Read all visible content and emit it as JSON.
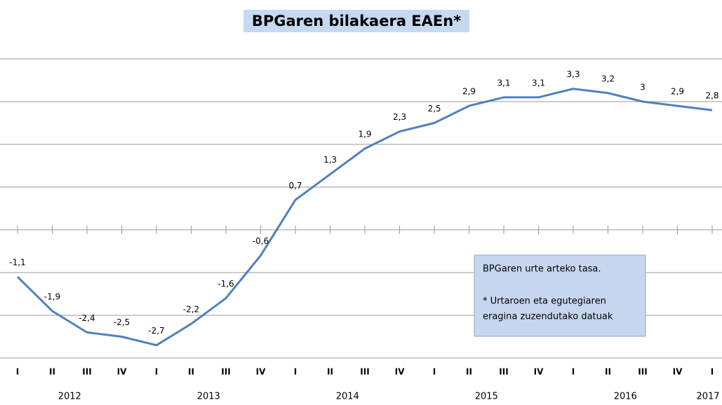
{
  "chart_data": {
    "type": "line",
    "title": "BPGaren bilakaera EAEn*",
    "categories": [
      "I",
      "II",
      "III",
      "IV",
      "I",
      "II",
      "III",
      "IV",
      "I",
      "II",
      "III",
      "IV",
      "I",
      "II",
      "III",
      "IV",
      "I",
      "II",
      "III",
      "IV",
      "I"
    ],
    "years": [
      "2012",
      "2013",
      "2014",
      "2015",
      "2016",
      "2017"
    ],
    "series": [
      {
        "name": "BPGaren urte arteko tasa",
        "color": "#4f81bd",
        "values": [
          -1.1,
          -1.9,
          -2.4,
          -2.5,
          -2.7,
          -2.2,
          -1.6,
          -0.6,
          0.7,
          1.3,
          1.9,
          2.3,
          2.5,
          2.9,
          3.1,
          3.1,
          3.3,
          3.2,
          3,
          2.9,
          2.8
        ],
        "value_labels": [
          "-1,1",
          "-1,9",
          "-2,4",
          "-2,5",
          "-2,7",
          "-2,2",
          "-1,6",
          "-0,6",
          "0,7",
          "1,3",
          "1,9",
          "2,3",
          "2,5",
          "2,9",
          "3,1",
          "3,1",
          "3,3",
          "3,2",
          "3",
          "2,9",
          "2,8"
        ]
      }
    ],
    "annotations": [
      "BPGaren urte arteko tasa.",
      "* Urtaroen eta egutegiaren",
      "eragina zuzendutako datuak"
    ],
    "ylim": [
      -3,
      4
    ],
    "yticks": [
      -3,
      -2,
      -1,
      0,
      1,
      2,
      3,
      4
    ],
    "grid": true
  }
}
